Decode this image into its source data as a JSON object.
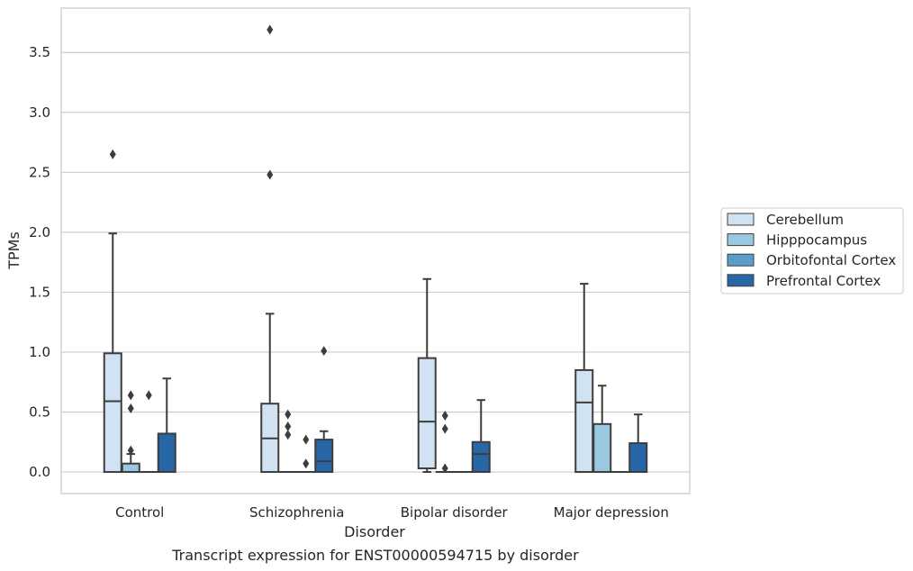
{
  "caption": "Transcript expression for ENST00000594715 by disorder",
  "chart_data": {
    "type": "box",
    "title": "",
    "xlabel": "Disorder",
    "ylabel": "TPMs",
    "ylim": [
      -0.18,
      3.87
    ],
    "yticks": [
      "0.0",
      "0.5",
      "1.0",
      "1.5",
      "2.0",
      "2.5",
      "3.0",
      "3.5"
    ],
    "grid": "horizontal",
    "legend_position": "right",
    "categories": [
      "Control",
      "Schizophrenia",
      "Bipolar disorder",
      "Major depression"
    ],
    "series": [
      {
        "name": "Cerebellum",
        "color": "#d1e2f2",
        "boxes": [
          {
            "whislo": 0.0,
            "q1": 0.0,
            "med": 0.59,
            "q3": 0.99,
            "whishi": 1.99,
            "fliers": [
              2.65
            ]
          },
          {
            "whislo": 0.0,
            "q1": 0.0,
            "med": 0.28,
            "q3": 0.57,
            "whishi": 1.32,
            "fliers": [
              2.48,
              3.69
            ]
          },
          {
            "whislo": 0.0,
            "q1": 0.03,
            "med": 0.42,
            "q3": 0.95,
            "whishi": 1.61,
            "fliers": []
          },
          {
            "whislo": 0.0,
            "q1": 0.0,
            "med": 0.58,
            "q3": 0.85,
            "whishi": 1.57,
            "fliers": []
          }
        ]
      },
      {
        "name": "Hipppocampus",
        "color": "#9ac8e0",
        "boxes": [
          {
            "whislo": 0.0,
            "q1": 0.0,
            "med": 0.0,
            "q3": 0.07,
            "whishi": 0.15,
            "fliers": [
              0.18,
              0.53,
              0.64
            ]
          },
          {
            "whislo": 0.0,
            "q1": 0.0,
            "med": 0.0,
            "q3": 0.0,
            "whishi": 0.0,
            "fliers": [
              0.31,
              0.38,
              0.48
            ]
          },
          {
            "whislo": 0.0,
            "q1": 0.0,
            "med": 0.0,
            "q3": 0.0,
            "whishi": 0.0,
            "fliers": [
              0.03,
              0.36,
              0.47
            ]
          },
          {
            "whislo": 0.0,
            "q1": 0.0,
            "med": 0.0,
            "q3": 0.4,
            "whishi": 0.72,
            "fliers": []
          }
        ]
      },
      {
        "name": "Orbitofontal Cortex",
        "color": "#5a9fc9",
        "boxes": [
          {
            "whislo": 0.0,
            "q1": 0.0,
            "med": 0.0,
            "q3": 0.0,
            "whishi": 0.0,
            "fliers": [
              0.64
            ]
          },
          {
            "whislo": 0.0,
            "q1": 0.0,
            "med": 0.0,
            "q3": 0.0,
            "whishi": 0.0,
            "fliers": [
              0.07,
              0.27
            ]
          },
          {
            "whislo": 0.0,
            "q1": 0.0,
            "med": 0.0,
            "q3": 0.0,
            "whishi": 0.0,
            "fliers": []
          },
          {
            "whislo": 0.0,
            "q1": 0.0,
            "med": 0.0,
            "q3": 0.0,
            "whishi": 0.0,
            "fliers": []
          }
        ]
      },
      {
        "name": "Prefrontal Cortex",
        "color": "#2767a8",
        "boxes": [
          {
            "whislo": 0.0,
            "q1": 0.0,
            "med": 0.0,
            "q3": 0.32,
            "whishi": 0.78,
            "fliers": []
          },
          {
            "whislo": 0.0,
            "q1": 0.0,
            "med": 0.09,
            "q3": 0.27,
            "whishi": 0.34,
            "fliers": [
              1.01
            ]
          },
          {
            "whislo": 0.0,
            "q1": 0.0,
            "med": 0.15,
            "q3": 0.25,
            "whishi": 0.6,
            "fliers": []
          },
          {
            "whislo": 0.0,
            "q1": 0.0,
            "med": 0.0,
            "q3": 0.24,
            "whishi": 0.48,
            "fliers": []
          }
        ]
      }
    ]
  }
}
